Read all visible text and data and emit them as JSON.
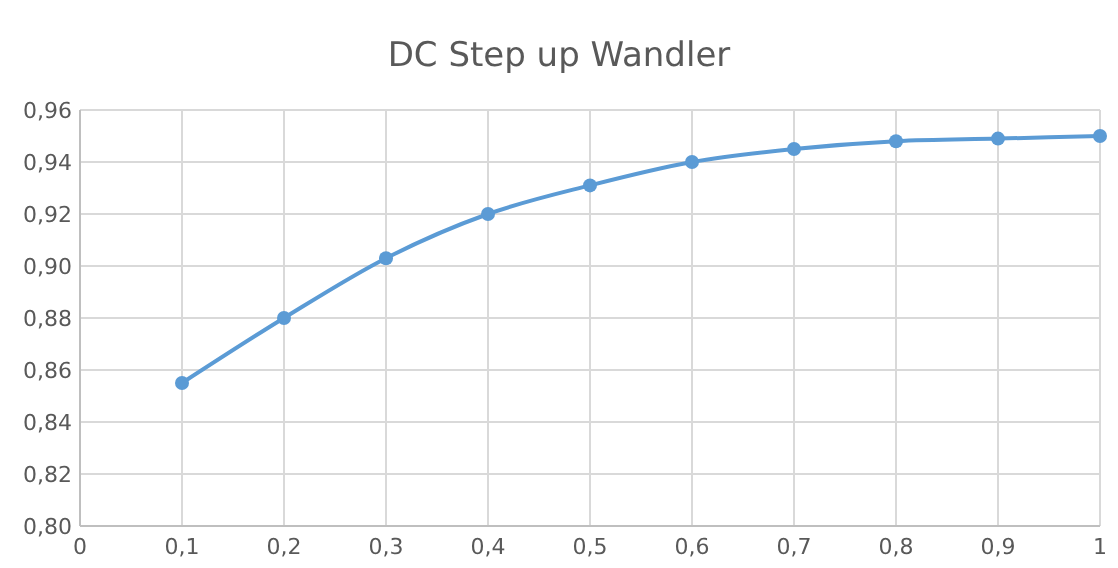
{
  "chart_data": {
    "type": "line",
    "title": "DC Step up Wandler",
    "x": [
      0.1,
      0.2,
      0.3,
      0.4,
      0.5,
      0.6,
      0.7,
      0.8,
      0.9,
      1
    ],
    "series": [
      {
        "color": "#5b9bd5",
        "values": [
          0.855,
          0.88,
          0.903,
          0.92,
          0.931,
          0.94,
          0.945,
          0.948,
          0.949,
          0.95
        ]
      }
    ],
    "xlim": [
      0,
      1
    ],
    "xticks": [
      0,
      {
        "value": 0.1,
        "label": "0,1"
      },
      {
        "value": 0.2,
        "label": "0,2"
      },
      {
        "value": 0.3,
        "label": "0,3"
      },
      {
        "value": 0.4,
        "label": "0,4"
      },
      {
        "value": 0.5,
        "label": "0,5"
      },
      {
        "value": 0.6,
        "label": "0,6"
      },
      {
        "value": 0.7,
        "label": "0,7"
      },
      {
        "value": 0.8,
        "label": "0,8"
      },
      {
        "value": 0.9,
        "label": "0,9"
      },
      1
    ],
    "ylim": [
      0.8,
      0.96
    ],
    "yticks": [
      {
        "value": 0.8,
        "label": "0,80"
      },
      {
        "value": 0.82,
        "label": "0,82"
      },
      {
        "value": 0.84,
        "label": "0,84"
      },
      {
        "value": 0.86,
        "label": "0,86"
      },
      {
        "value": 0.88,
        "label": "0,88"
      },
      {
        "value": 0.9,
        "label": "0,90"
      },
      {
        "value": 0.92,
        "label": "0,92"
      },
      {
        "value": 0.94,
        "label": "0,94"
      },
      {
        "value": 0.96,
        "label": "0,96"
      }
    ],
    "grid": true,
    "marker": "circle",
    "line_style": "solid"
  }
}
